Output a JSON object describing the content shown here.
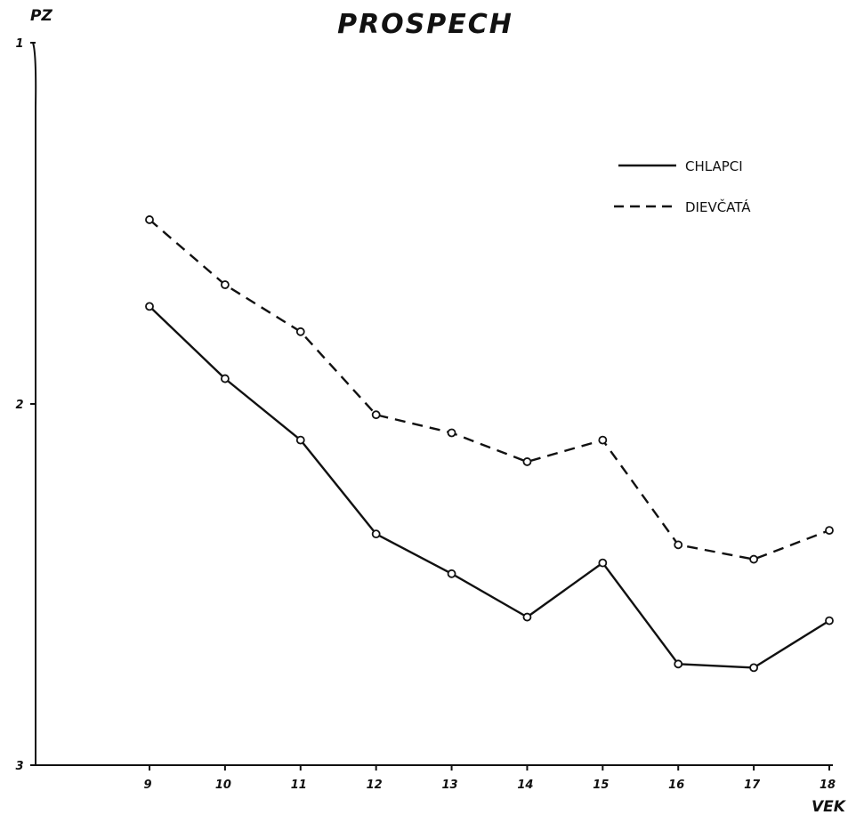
{
  "chart_data": {
    "type": "line",
    "title": "PROSPECH",
    "ylabel": "PZ",
    "xlabel": "VEK",
    "x": [
      9,
      10,
      11,
      12,
      13,
      14,
      15,
      16,
      17,
      18
    ],
    "x_tick_labels": [
      "9",
      "10",
      "11",
      "12",
      "13",
      "14",
      "15",
      "16",
      "17",
      "18"
    ],
    "y_ticks": [
      1,
      2,
      3
    ],
    "y_tick_labels": [
      "1",
      "2",
      "3"
    ],
    "ylim": [
      1,
      3
    ],
    "y_inverted": true,
    "grid": false,
    "legend_position": "top-right",
    "series": [
      {
        "name": "CHLAPCI",
        "style": "solid",
        "values": [
          1.73,
          1.93,
          2.1,
          2.36,
          2.47,
          2.59,
          2.44,
          2.72,
          2.73,
          2.6
        ]
      },
      {
        "name": "DIEVČATÁ",
        "style": "dashed",
        "values": [
          1.49,
          1.67,
          1.8,
          2.03,
          2.08,
          2.16,
          2.1,
          2.39,
          2.43,
          2.35
        ]
      }
    ]
  }
}
